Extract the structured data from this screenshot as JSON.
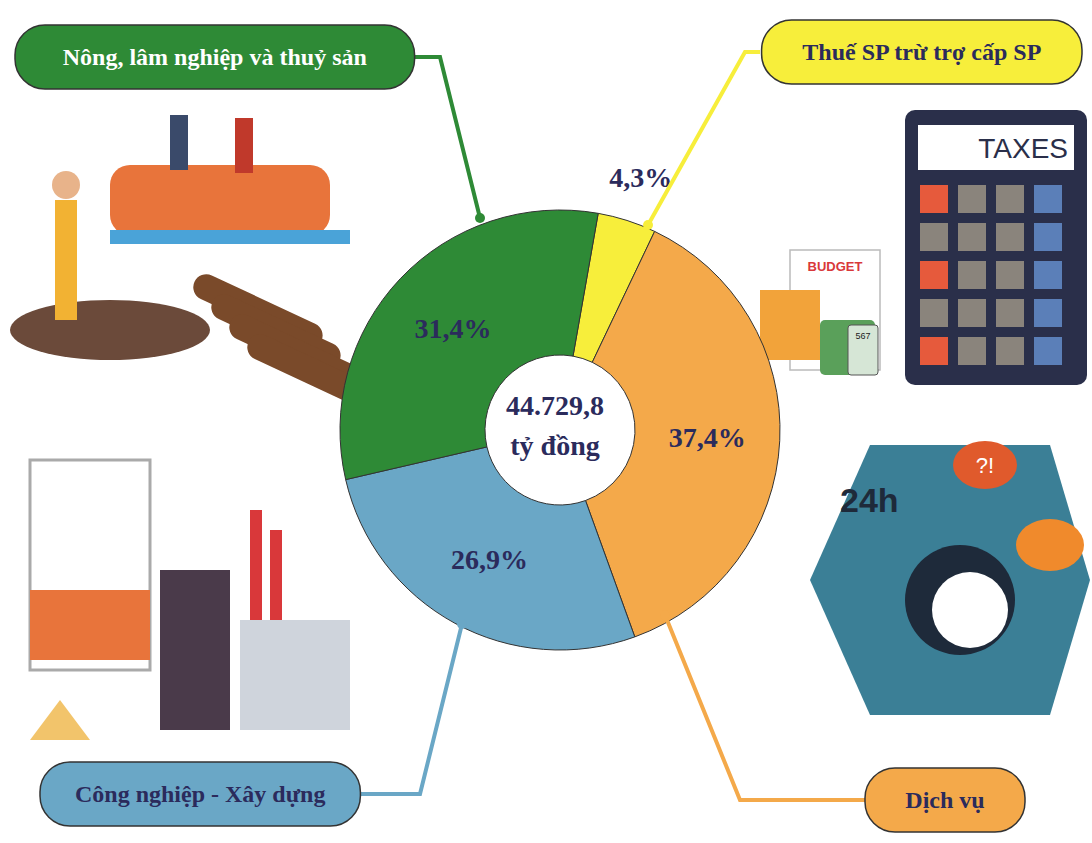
{
  "chart_data": {
    "type": "pie",
    "categories": [
      "Thuế SP trừ trợ cấp SP",
      "Dịch vụ",
      "Công nghiệp - Xây dựng",
      "Nông, lâm nghiệp và thuỷ sản"
    ],
    "values": [
      4.3,
      37.4,
      26.9,
      31.4
    ],
    "value_labels": [
      "4,3%",
      "37,4%",
      "26,9%",
      "31,4%"
    ],
    "colors": [
      "#f7ee3b",
      "#f4a94a",
      "#6aa7c6",
      "#2e8a36"
    ],
    "data_labels": true,
    "center_label": [
      "44.729,8",
      "tỷ đồng"
    ],
    "annotations": [
      "TAXES",
      "BUDGET",
      "567",
      "24h",
      "?!"
    ]
  }
}
